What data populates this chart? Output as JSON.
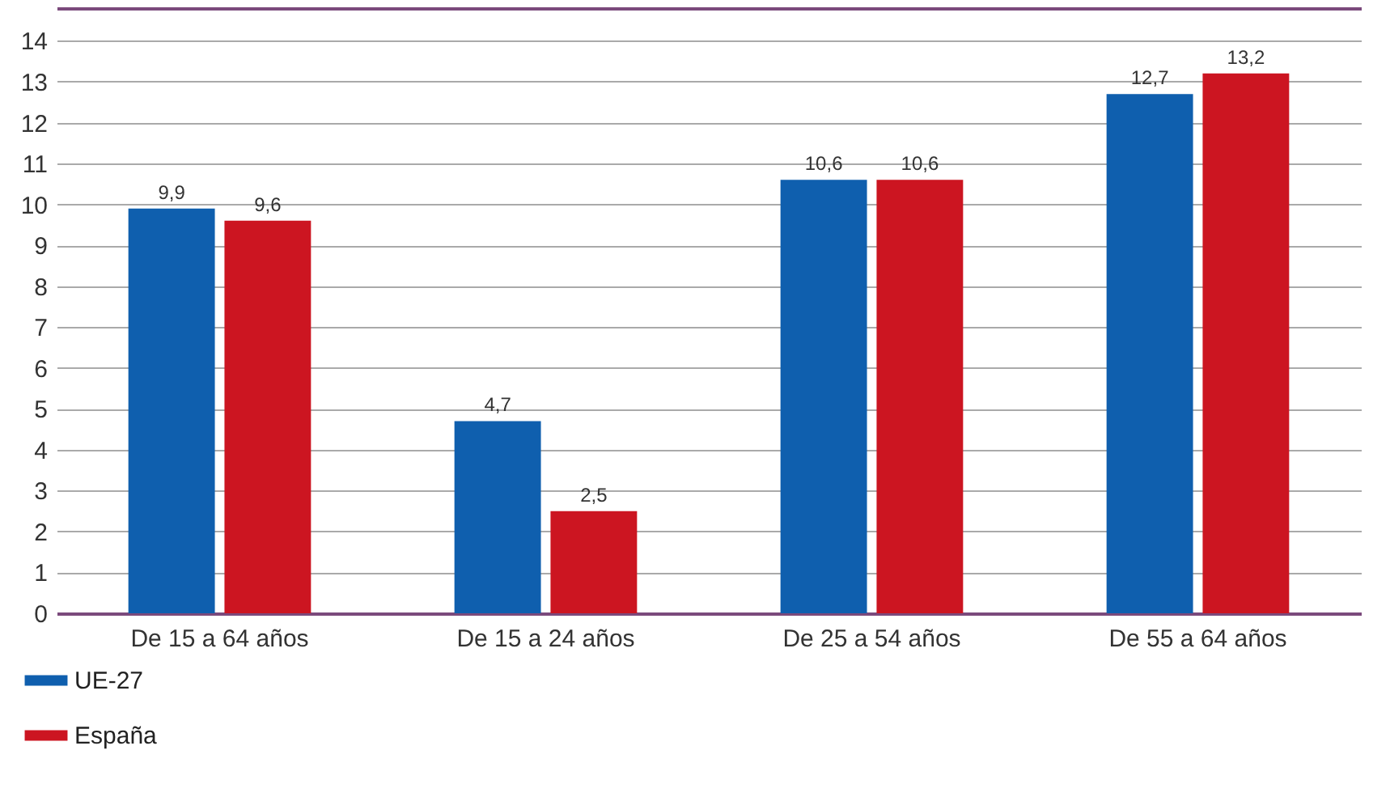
{
  "chart_data": {
    "type": "bar",
    "categories": [
      "De 15 a 64 años",
      "De 15 a 24 años",
      "De 25 a 54 años",
      "De 55 a 64 años"
    ],
    "series": [
      {
        "name": "UE-27",
        "color": "#0f5fae",
        "values": [
          9.9,
          4.7,
          10.6,
          12.7
        ]
      },
      {
        "name": "España",
        "color": "#cc1521",
        "values": [
          9.6,
          2.5,
          10.6,
          13.2
        ]
      }
    ],
    "value_labels": [
      [
        "9,9",
        "4,7",
        "10,6",
        "12,7"
      ],
      [
        "9,6",
        "2,5",
        "10,6",
        "13,2"
      ]
    ],
    "ylim": [
      0,
      14.8
    ],
    "yticks": [
      0,
      1,
      2,
      3,
      4,
      5,
      6,
      7,
      8,
      9,
      10,
      11,
      12,
      13,
      14
    ],
    "grid": "y",
    "legend": "bottom left"
  }
}
